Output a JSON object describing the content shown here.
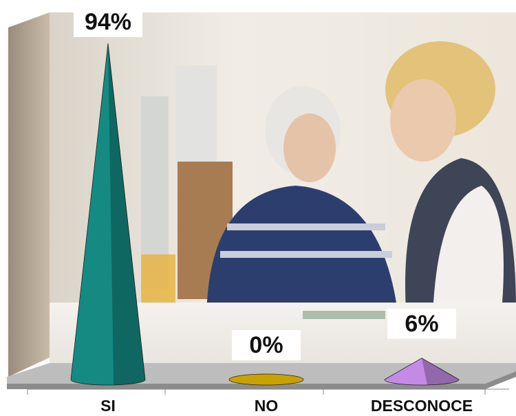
{
  "chart_data": {
    "type": "cone",
    "categories": [
      "SI",
      "NO",
      "DESCONOCE"
    ],
    "values": [
      94,
      0,
      6
    ],
    "value_labels": [
      "94%",
      "0%",
      "6%"
    ],
    "colors": [
      "#148a82",
      "#c9a200",
      "#c58ae6"
    ]
  }
}
